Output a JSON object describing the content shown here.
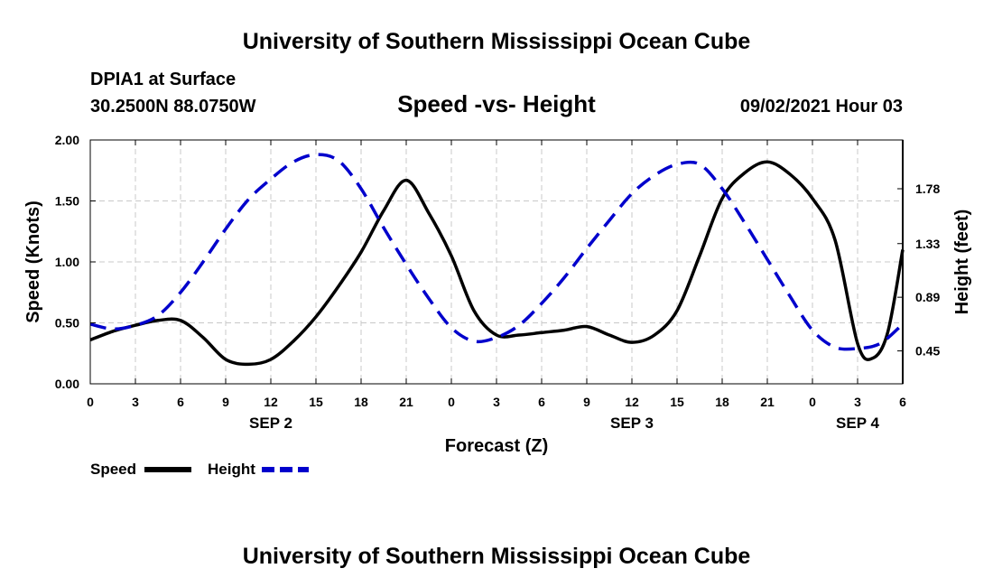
{
  "page": {
    "top_title": "University of Southern Mississippi Ocean Cube",
    "bottom_title": "University of Southern Mississippi Ocean Cube",
    "station": "DPIA1 at Surface",
    "location": "30.2500N  88.0750W",
    "run_time": "09/02/2021 Hour 03"
  },
  "chart_data": {
    "type": "line",
    "title": "Speed -vs- Height",
    "xlabel": "Forecast (Z)",
    "ylabel_left": "Speed (Knots)",
    "ylabel_right": "Height (feet)",
    "xlim": [
      0,
      54
    ],
    "ylim_left": [
      0,
      2.0
    ],
    "ylim_right": [
      0.18,
      2.18
    ],
    "grid": true,
    "x_tick_positions": [
      0,
      3,
      6,
      9,
      12,
      15,
      18,
      21,
      24,
      27,
      30,
      33,
      36,
      39,
      42,
      45,
      48,
      51,
      54
    ],
    "x_tick_labels": [
      "0",
      "3",
      "6",
      "9",
      "12",
      "15",
      "18",
      "21",
      "0",
      "3",
      "6",
      "9",
      "12",
      "15",
      "18",
      "21",
      "0",
      "3",
      "6"
    ],
    "y_left_ticks": [
      0,
      0.5,
      1.0,
      1.5,
      2.0
    ],
    "y_left_tick_labels": [
      "0.00",
      "0.50",
      "1.00",
      "1.50",
      "2.00"
    ],
    "y_right_ticks": [
      0.45,
      0.89,
      1.33,
      1.78
    ],
    "y_right_tick_labels": [
      "0.45",
      "0.89",
      "1.33",
      "1.78"
    ],
    "date_labels": [
      {
        "x": 12,
        "label": "SEP 2"
      },
      {
        "x": 36,
        "label": "SEP 3"
      },
      {
        "x": 51,
        "label": "SEP 4"
      }
    ],
    "legend": [
      {
        "name": "Speed",
        "color": "#000000",
        "style": "solid"
      },
      {
        "name": "Height",
        "color": "#0000cc",
        "style": "dashed"
      }
    ],
    "series": [
      {
        "name": "Speed",
        "axis": "left",
        "color": "#000000",
        "dash": "none",
        "x": [
          0,
          1.5,
          3,
          4.5,
          6,
          7.5,
          9,
          10.5,
          12,
          13.5,
          15,
          16.5,
          18,
          19.5,
          21,
          22.5,
          24,
          25.5,
          27,
          28.5,
          30,
          31.5,
          33,
          34.5,
          36,
          37.5,
          39,
          40.5,
          42,
          43.5,
          45,
          46.5,
          48,
          49.5,
          51,
          52,
          53,
          54
        ],
        "y": [
          0.36,
          0.43,
          0.48,
          0.52,
          0.52,
          0.38,
          0.2,
          0.16,
          0.2,
          0.35,
          0.55,
          0.8,
          1.08,
          1.42,
          1.67,
          1.4,
          1.05,
          0.6,
          0.4,
          0.4,
          0.42,
          0.44,
          0.47,
          0.4,
          0.34,
          0.4,
          0.6,
          1.05,
          1.52,
          1.73,
          1.82,
          1.72,
          1.52,
          1.18,
          0.33,
          0.21,
          0.42,
          1.1
        ]
      },
      {
        "name": "Height",
        "axis": "right",
        "color": "#0000cc",
        "dash": "18,10",
        "x": [
          0,
          1.5,
          3,
          4.5,
          6,
          7.5,
          9,
          10.5,
          12,
          13.5,
          15,
          16.5,
          18,
          19.5,
          21,
          22.5,
          24,
          25.5,
          27,
          28.5,
          30,
          31.5,
          33,
          34.5,
          36,
          37.5,
          39,
          40.5,
          42,
          43.5,
          45,
          46.5,
          48,
          49.5,
          51,
          52.5,
          54
        ],
        "y": [
          0.67,
          0.63,
          0.66,
          0.74,
          0.93,
          1.18,
          1.45,
          1.69,
          1.86,
          2.0,
          2.06,
          2.01,
          1.78,
          1.46,
          1.16,
          0.88,
          0.64,
          0.53,
          0.56,
          0.66,
          0.84,
          1.05,
          1.29,
          1.52,
          1.74,
          1.89,
          1.98,
          1.98,
          1.78,
          1.5,
          1.2,
          0.9,
          0.62,
          0.48,
          0.47,
          0.51,
          0.67
        ]
      }
    ]
  }
}
